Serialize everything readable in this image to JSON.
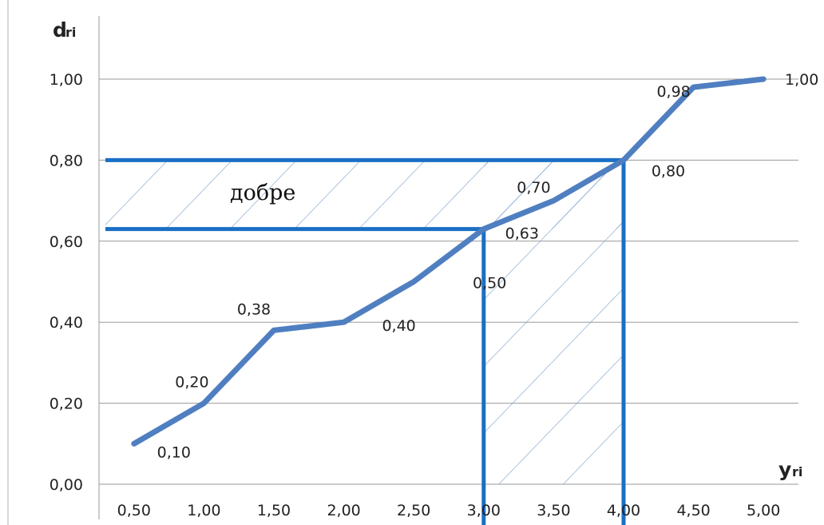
{
  "chart_data": {
    "type": "line",
    "x": [
      0.5,
      1.0,
      1.5,
      2.0,
      2.5,
      3.0,
      3.5,
      4.0,
      4.5,
      5.0
    ],
    "categories": [
      "0,50",
      "1,00",
      "1,50",
      "2,00",
      "2,50",
      "3,00",
      "3,50",
      "4,00",
      "4,50",
      "5,00"
    ],
    "series": [
      {
        "values": [
          0.1,
          0.2,
          0.38,
          0.4,
          0.5,
          0.63,
          0.7,
          0.8,
          0.98,
          1.0
        ],
        "data_labels": [
          "0,10",
          "0,20",
          "0,38",
          "0,40",
          "0,50",
          "0,63",
          "0,70",
          "0,80",
          "0,98",
          "1,00"
        ],
        "color": "#4f7fc0"
      }
    ],
    "y_ticks": [
      "0,00",
      "0,20",
      "0,40",
      "0,60",
      "0,80",
      "1,00"
    ],
    "y_tick_values": [
      0,
      0.2,
      0.4,
      0.6,
      0.8,
      1.0
    ],
    "ylim": [
      0,
      1.0
    ],
    "xlim": [
      0.25,
      5.25
    ],
    "y_axis_title": "d",
    "y_axis_subscript": "ri",
    "x_axis_title": "y",
    "x_axis_subscript": "ri",
    "grid": "horizontal",
    "legend": "none",
    "zone": {
      "label": "добре",
      "y_low": 0.63,
      "y_high": 0.8,
      "x_low": 3.0,
      "x_high": 4.0,
      "color": "#1a6fc4",
      "hatch_color": "#7fa4cc"
    }
  }
}
